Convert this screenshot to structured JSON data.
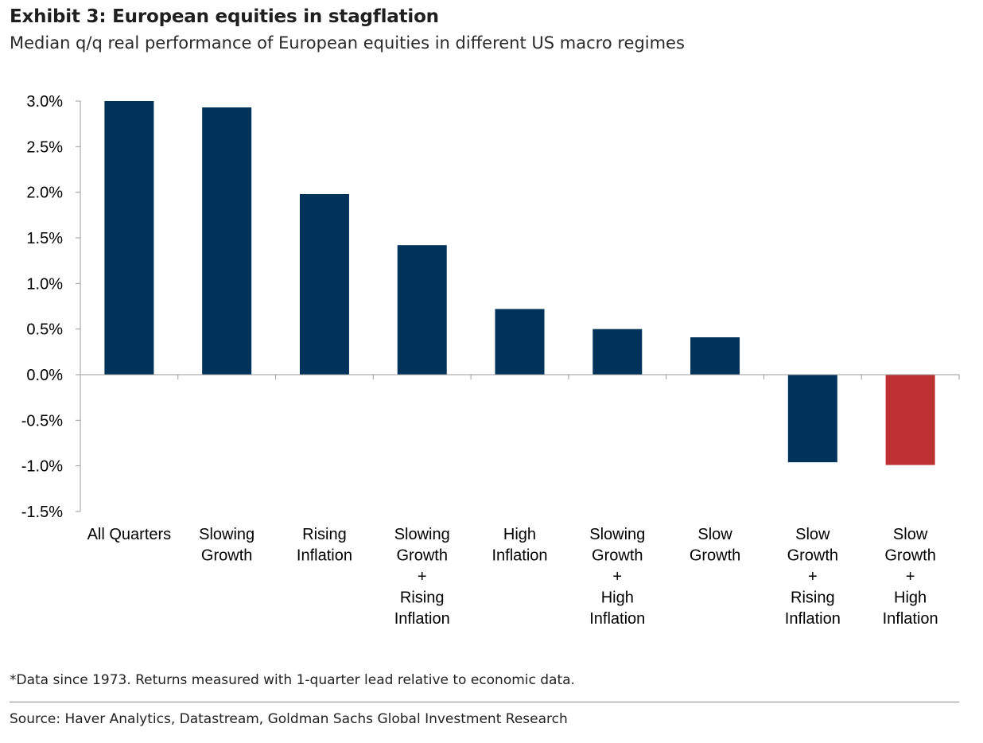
{
  "header": {
    "title": "Exhibit 3: European equities in stagflation",
    "subtitle": "Median q/q real performance of European equities in different US macro regimes"
  },
  "chart_data": {
    "type": "bar",
    "title": "Exhibit 3: European equities in stagflation",
    "subtitle": "Median q/q real performance of European equities in different US macro regimes",
    "xlabel": "",
    "ylabel": "",
    "ylim": [
      -1.5,
      3.0
    ],
    "yticks": [
      3.0,
      2.5,
      2.0,
      1.5,
      1.0,
      0.5,
      0.0,
      -0.5,
      -1.0,
      -1.5
    ],
    "ytick_labels": [
      "3.0%",
      "2.5%",
      "2.0%",
      "1.5%",
      "1.0%",
      "0.5%",
      "0.0%",
      "-0.5%",
      "-1.0%",
      "-1.5%"
    ],
    "grid": false,
    "categories": [
      [
        "All Quarters"
      ],
      [
        "Slowing",
        "Growth"
      ],
      [
        "Rising",
        "Inflation"
      ],
      [
        "Slowing",
        "Growth",
        "+",
        "Rising",
        "Inflation"
      ],
      [
        "High",
        "Inflation"
      ],
      [
        "Slowing",
        "Growth",
        "+",
        "High",
        "Inflation"
      ],
      [
        "Slow",
        "Growth"
      ],
      [
        "Slow",
        "Growth",
        "+",
        "Rising",
        "Inflation"
      ],
      [
        "Slow",
        "Growth",
        "+",
        "High",
        "Inflation"
      ]
    ],
    "values": [
      3.0,
      2.93,
      1.98,
      1.42,
      0.72,
      0.5,
      0.41,
      -0.96,
      -0.99
    ],
    "bar_colors": [
      "#003359",
      "#003359",
      "#003359",
      "#003359",
      "#003359",
      "#003359",
      "#003359",
      "#003359",
      "#BE3133"
    ]
  },
  "footnote": "*Data since 1973. Returns measured with 1-quarter lead relative to economic data.",
  "source": "Source: Haver Analytics, Datastream, Goldman Sachs Global Investment Research"
}
